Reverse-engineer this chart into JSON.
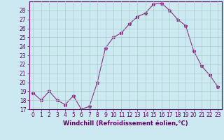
{
  "x": [
    0,
    1,
    2,
    3,
    4,
    5,
    6,
    7,
    8,
    9,
    10,
    11,
    12,
    13,
    14,
    15,
    16,
    17,
    18,
    19,
    20,
    21,
    22,
    23
  ],
  "y": [
    18.8,
    18.0,
    19.0,
    18.0,
    17.5,
    18.5,
    17.0,
    17.3,
    20.0,
    23.8,
    25.0,
    25.5,
    26.5,
    27.3,
    27.7,
    28.7,
    28.8,
    28.0,
    27.0,
    26.3,
    23.5,
    21.8,
    20.8,
    19.5
  ],
  "line_color": "#883388",
  "marker": "*",
  "marker_size": 3.5,
  "bg_color": "#cce8f0",
  "grid_color": "#aacccc",
  "tick_color": "#660066",
  "xlabel": "Windchill (Refroidissement éolien,°C)",
  "ylim": [
    17,
    29
  ],
  "xlim": [
    -0.5,
    23.5
  ],
  "yticks": [
    17,
    18,
    19,
    20,
    21,
    22,
    23,
    24,
    25,
    26,
    27,
    28
  ],
  "xticks": [
    0,
    1,
    2,
    3,
    4,
    5,
    6,
    7,
    8,
    9,
    10,
    11,
    12,
    13,
    14,
    15,
    16,
    17,
    18,
    19,
    20,
    21,
    22,
    23
  ],
  "axis_color": "#660066",
  "spine_color": "#660066",
  "xlabel_fontsize": 6.0,
  "tick_fontsize": 5.5
}
